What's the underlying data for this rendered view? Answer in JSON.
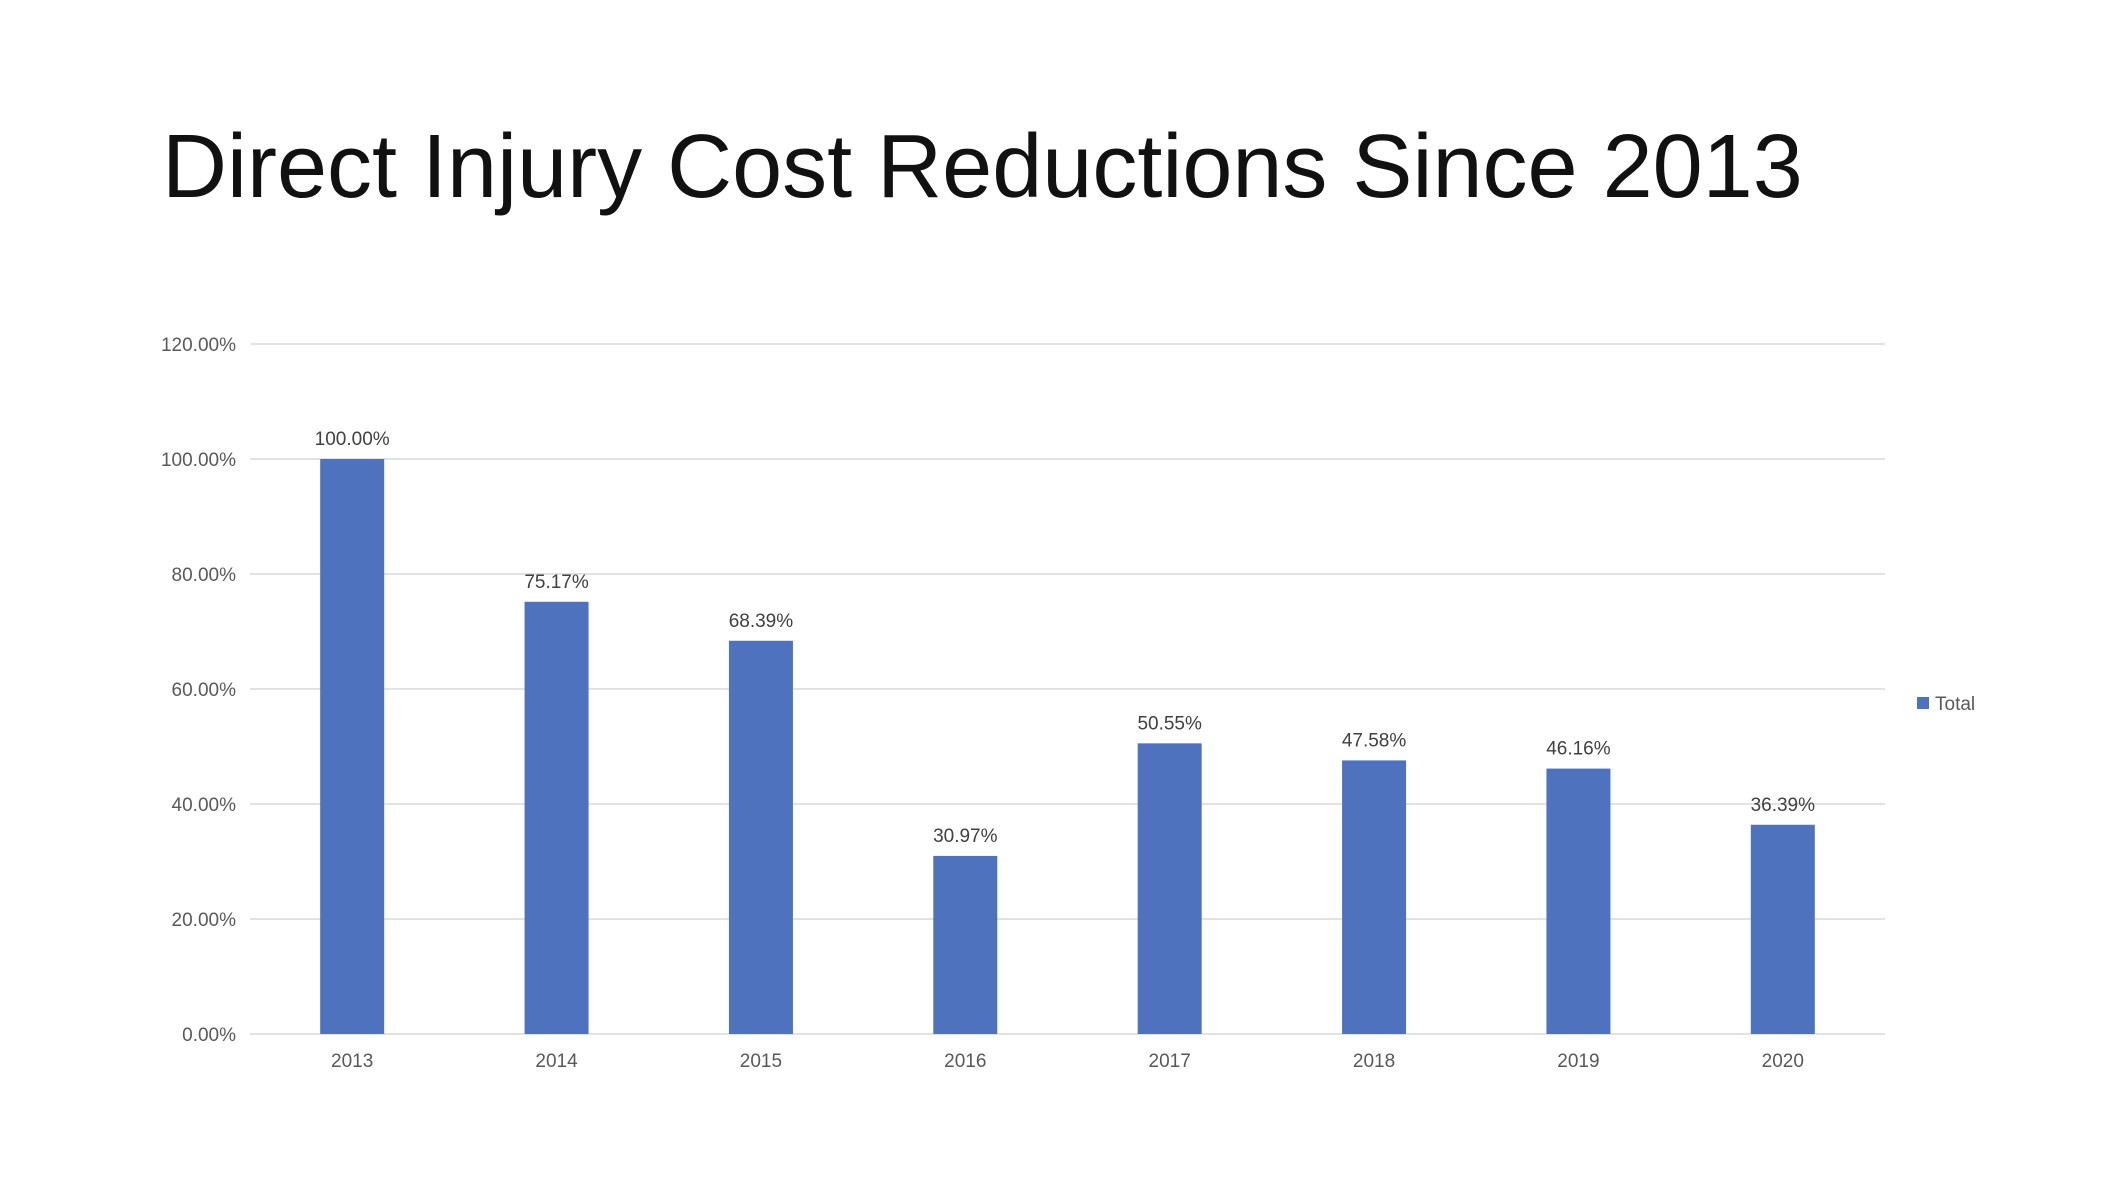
{
  "slide": {
    "title": "Direct Injury Cost Reductions Since 2013"
  },
  "chart_data": {
    "type": "bar",
    "title": "",
    "xlabel": "",
    "ylabel": "",
    "categories": [
      "2013",
      "2014",
      "2015",
      "2016",
      "2017",
      "2018",
      "2019",
      "2020"
    ],
    "series": [
      {
        "name": "Total",
        "values": [
          100.0,
          75.17,
          68.39,
          30.97,
          50.55,
          47.58,
          46.16,
          36.39
        ],
        "data_labels": [
          "100.00%",
          "75.17%",
          "68.39%",
          "30.97%",
          "50.55%",
          "47.58%",
          "46.16%",
          "36.39%"
        ],
        "color": "#4F72BF"
      }
    ],
    "ylim": [
      0,
      120
    ],
    "y_ticks": [
      0,
      20,
      40,
      60,
      80,
      100,
      120
    ],
    "y_tick_labels": [
      "0.00%",
      "20.00%",
      "40.00%",
      "60.00%",
      "80.00%",
      "100.00%",
      "120.00%"
    ],
    "grid": true,
    "gridline_color": "#D9D9D9",
    "legend_position": "right"
  }
}
